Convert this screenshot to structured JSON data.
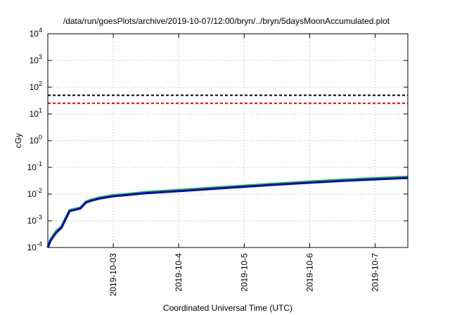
{
  "chart_data": {
    "type": "line",
    "title": "/data/run/goesPlots/archive/2019-10-07/12:00/bryn/../bryn/5daysMoonAccumulated.plot",
    "xlabel": "Coordinated Universal Time (UTC)",
    "ylabel": "cGy",
    "y_scale": "log",
    "ylim": [
      0.0001,
      10000
    ],
    "xlim": [
      "2019-10-02T00:00",
      "2019-10-07T12:00"
    ],
    "grid": true,
    "x_ticks": [
      "2019-10-03",
      "2019-10-4",
      "2019-10-5",
      "2019-10-6",
      "2019-10-7"
    ],
    "y_ticks": [
      {
        "value": 0.0001,
        "base": "10",
        "exp": "-4"
      },
      {
        "value": 0.001,
        "base": "10",
        "exp": "-3"
      },
      {
        "value": 0.01,
        "base": "10",
        "exp": "-2"
      },
      {
        "value": 0.1,
        "base": "10",
        "exp": "-1"
      },
      {
        "value": 1,
        "base": "10",
        "exp": "0"
      },
      {
        "value": 10,
        "base": "10",
        "exp": "1"
      },
      {
        "value": 100,
        "base": "10",
        "exp": "2"
      },
      {
        "value": 1000,
        "base": "10",
        "exp": "3"
      },
      {
        "value": 10000,
        "base": "10",
        "exp": "4"
      }
    ],
    "reference_lines": [
      {
        "value": 50,
        "color": "#000000",
        "style": "dashed"
      },
      {
        "value": 25,
        "color": "#ff0000",
        "style": "dashed"
      }
    ],
    "series": [
      {
        "color": "#22bb22",
        "x": [
          "2019-10-02T00:00",
          "2019-10-02T01:00",
          "2019-10-02T03:00",
          "2019-10-02T05:00",
          "2019-10-02T08:00",
          "2019-10-02T12:00",
          "2019-10-02T14:00",
          "2019-10-02T16:00",
          "2019-10-02T19:00",
          "2019-10-03T00:00",
          "2019-10-03T06:00",
          "2019-10-03T12:00",
          "2019-10-04T00:00",
          "2019-10-04T12:00",
          "2019-10-05T00:00",
          "2019-10-05T12:00",
          "2019-10-06T00:00",
          "2019-10-06T12:00",
          "2019-10-07T00:00",
          "2019-10-07T12:00"
        ],
        "y": [
          0.0001,
          0.0002,
          0.0004,
          0.0006,
          0.0025,
          0.0031,
          0.0052,
          0.0062,
          0.0074,
          0.009,
          0.0102,
          0.0118,
          0.014,
          0.017,
          0.0205,
          0.0245,
          0.029,
          0.034,
          0.039,
          0.044
        ]
      },
      {
        "color": "#0000cc",
        "x": [
          "2019-10-02T00:00",
          "2019-10-02T01:00",
          "2019-10-02T03:00",
          "2019-10-02T05:00",
          "2019-10-02T08:00",
          "2019-10-02T12:00",
          "2019-10-02T14:00",
          "2019-10-02T16:00",
          "2019-10-02T19:00",
          "2019-10-03T00:00",
          "2019-10-03T06:00",
          "2019-10-03T12:00",
          "2019-10-04T00:00",
          "2019-10-04T12:00",
          "2019-10-05T00:00",
          "2019-10-05T12:00",
          "2019-10-06T00:00",
          "2019-10-06T12:00",
          "2019-10-07T00:00",
          "2019-10-07T12:00"
        ],
        "y": [
          0.0001,
          0.00018,
          0.00035,
          0.00055,
          0.0023,
          0.0029,
          0.0048,
          0.0057,
          0.0068,
          0.0083,
          0.0094,
          0.0108,
          0.0128,
          0.0155,
          0.0188,
          0.0225,
          0.0265,
          0.031,
          0.0355,
          0.04
        ]
      }
    ]
  }
}
